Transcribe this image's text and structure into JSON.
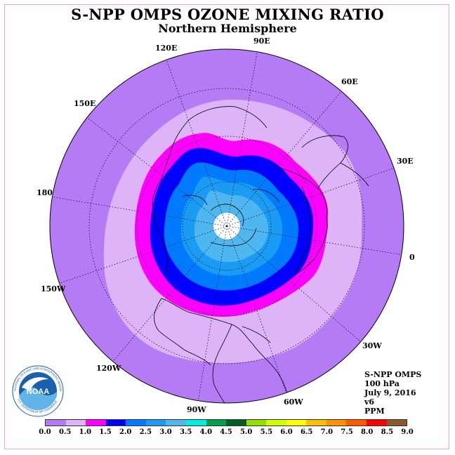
{
  "header": {
    "title": "S-NPP OMPS OZONE MIXING RATIO",
    "subtitle": "Northern Hemisphere"
  },
  "map": {
    "projection": "north-polar-stereographic",
    "polar_cap_color": "#ffffff",
    "ring_colors": [
      "#b57bf5",
      "#dcb4f7",
      "#ff00ff",
      "#0000ff",
      "#007bff",
      "#1a9cf5",
      "#4fb7f0"
    ],
    "coastline_color": "#000000",
    "graticule_color": "#000000",
    "longitude_labels": [
      {
        "id": "90e",
        "text": "90E"
      },
      {
        "id": "60e",
        "text": "60E"
      },
      {
        "id": "30e",
        "text": "30E"
      },
      {
        "id": "0",
        "text": "0"
      },
      {
        "id": "30w",
        "text": "30W"
      },
      {
        "id": "60w",
        "text": "60W"
      },
      {
        "id": "90w",
        "text": "90W"
      },
      {
        "id": "120w",
        "text": "120W"
      },
      {
        "id": "150w",
        "text": "150W"
      },
      {
        "id": "180",
        "text": "180"
      },
      {
        "id": "150e",
        "text": "150E"
      },
      {
        "id": "120e",
        "text": "120E"
      }
    ]
  },
  "info": {
    "instrument": "S-NPP OMPS",
    "level": "100 hPa",
    "date": "July 9, 2016",
    "version": "v6",
    "units": "PPM"
  },
  "colorbar": {
    "colors": [
      "#b57bf5",
      "#dcb4f7",
      "#ff00ff",
      "#0000ff",
      "#007bff",
      "#1a9cf5",
      "#4fb7f0",
      "#00f0e0",
      "#00a050",
      "#006020",
      "#90e000",
      "#d0ff00",
      "#ffff00",
      "#ffc000",
      "#ff9000",
      "#ff5a00",
      "#ff0000",
      "#8b5a2b"
    ],
    "ticks": [
      "0.0",
      "0.5",
      "1.0",
      "1.5",
      "2.0",
      "2.5",
      "3.0",
      "3.5",
      "4.0",
      "4.5",
      "5.0",
      "5.5",
      "6.0",
      "6.5",
      "7.0",
      "7.5",
      "8.0",
      "8.5",
      "9.0"
    ]
  },
  "logo": {
    "text": "NOAA",
    "ring_text": "NATIONAL OCEANIC AND ATMOSPHERIC ADMINISTRATION",
    "ring_text_bottom": "U.S. DEPARTMENT OF COMMERCE"
  }
}
